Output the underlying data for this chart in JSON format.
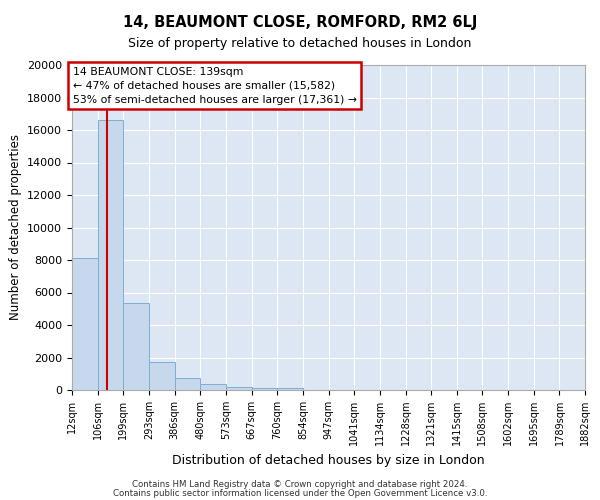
{
  "title": "14, BEAUMONT CLOSE, ROMFORD, RM2 6LJ",
  "subtitle": "Size of property relative to detached houses in London",
  "xlabel": "Distribution of detached houses by size in London",
  "ylabel": "Number of detached properties",
  "bin_edges": [
    12,
    106,
    199,
    293,
    386,
    480,
    573,
    667,
    760,
    854,
    947,
    1041,
    1134,
    1228,
    1321,
    1415,
    1508,
    1602,
    1695,
    1789,
    1882
  ],
  "bin_labels": [
    "12sqm",
    "106sqm",
    "199sqm",
    "293sqm",
    "386sqm",
    "480sqm",
    "573sqm",
    "667sqm",
    "760sqm",
    "854sqm",
    "947sqm",
    "1041sqm",
    "1134sqm",
    "1228sqm",
    "1321sqm",
    "1415sqm",
    "1508sqm",
    "1602sqm",
    "1695sqm",
    "1789sqm",
    "1882sqm"
  ],
  "bar_heights": [
    8100,
    16600,
    5350,
    1750,
    750,
    350,
    200,
    130,
    100,
    0,
    0,
    0,
    0,
    0,
    0,
    0,
    0,
    0,
    0,
    0
  ],
  "bar_color": "#c8d8ec",
  "bar_edge_color": "#7bafd4",
  "property_size": 139,
  "vline_color": "#cc0000",
  "annotation_line1": "14 BEAUMONT CLOSE: 139sqm",
  "annotation_line2": "← 47% of detached houses are smaller (15,582)",
  "annotation_line3": "53% of semi-detached houses are larger (17,361) →",
  "annotation_box_color": "#cc0000",
  "ylim": [
    0,
    20000
  ],
  "yticks": [
    0,
    2000,
    4000,
    6000,
    8000,
    10000,
    12000,
    14000,
    16000,
    18000,
    20000
  ],
  "plot_background": "#dce7f3",
  "grid_color": "#ffffff",
  "footer_line1": "Contains HM Land Registry data © Crown copyright and database right 2024.",
  "footer_line2": "Contains public sector information licensed under the Open Government Licence v3.0."
}
